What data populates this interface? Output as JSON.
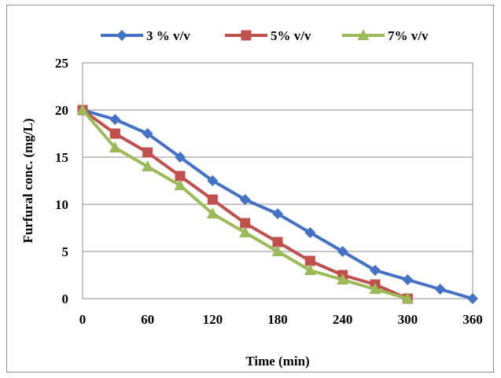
{
  "chart_data": {
    "type": "line",
    "title": "",
    "xlabel": "Time (min)",
    "ylabel": "Furfural conc. (mg/L)",
    "xlim": [
      0,
      360
    ],
    "ylim": [
      0,
      25
    ],
    "xticks": [
      0,
      60,
      120,
      180,
      240,
      300,
      360
    ],
    "yticks": [
      0,
      5,
      10,
      15,
      20,
      25
    ],
    "grid": "horizontal",
    "legend_position": "top",
    "series": [
      {
        "name": "3 % v/v",
        "color": "#4472C4",
        "marker": "diamond",
        "x": [
          0,
          30,
          60,
          90,
          120,
          150,
          180,
          210,
          240,
          270,
          300,
          330,
          360
        ],
        "y": [
          20,
          19,
          17.5,
          15,
          12.5,
          10.5,
          9,
          7,
          5,
          3,
          2,
          1,
          0
        ]
      },
      {
        "name": "5% v/v",
        "color": "#C0504D",
        "marker": "square",
        "x": [
          0,
          30,
          60,
          90,
          120,
          150,
          180,
          210,
          240,
          270,
          300
        ],
        "y": [
          20,
          17.5,
          15.5,
          13,
          10.5,
          8,
          6,
          4,
          2.5,
          1.5,
          0
        ]
      },
      {
        "name": "7% v/v",
        "color": "#9BBB59",
        "marker": "triangle",
        "x": [
          0,
          30,
          60,
          90,
          120,
          150,
          180,
          210,
          240,
          270,
          300
        ],
        "y": [
          20,
          16,
          14,
          12,
          9,
          7,
          5,
          3,
          2,
          1,
          0
        ]
      }
    ]
  }
}
